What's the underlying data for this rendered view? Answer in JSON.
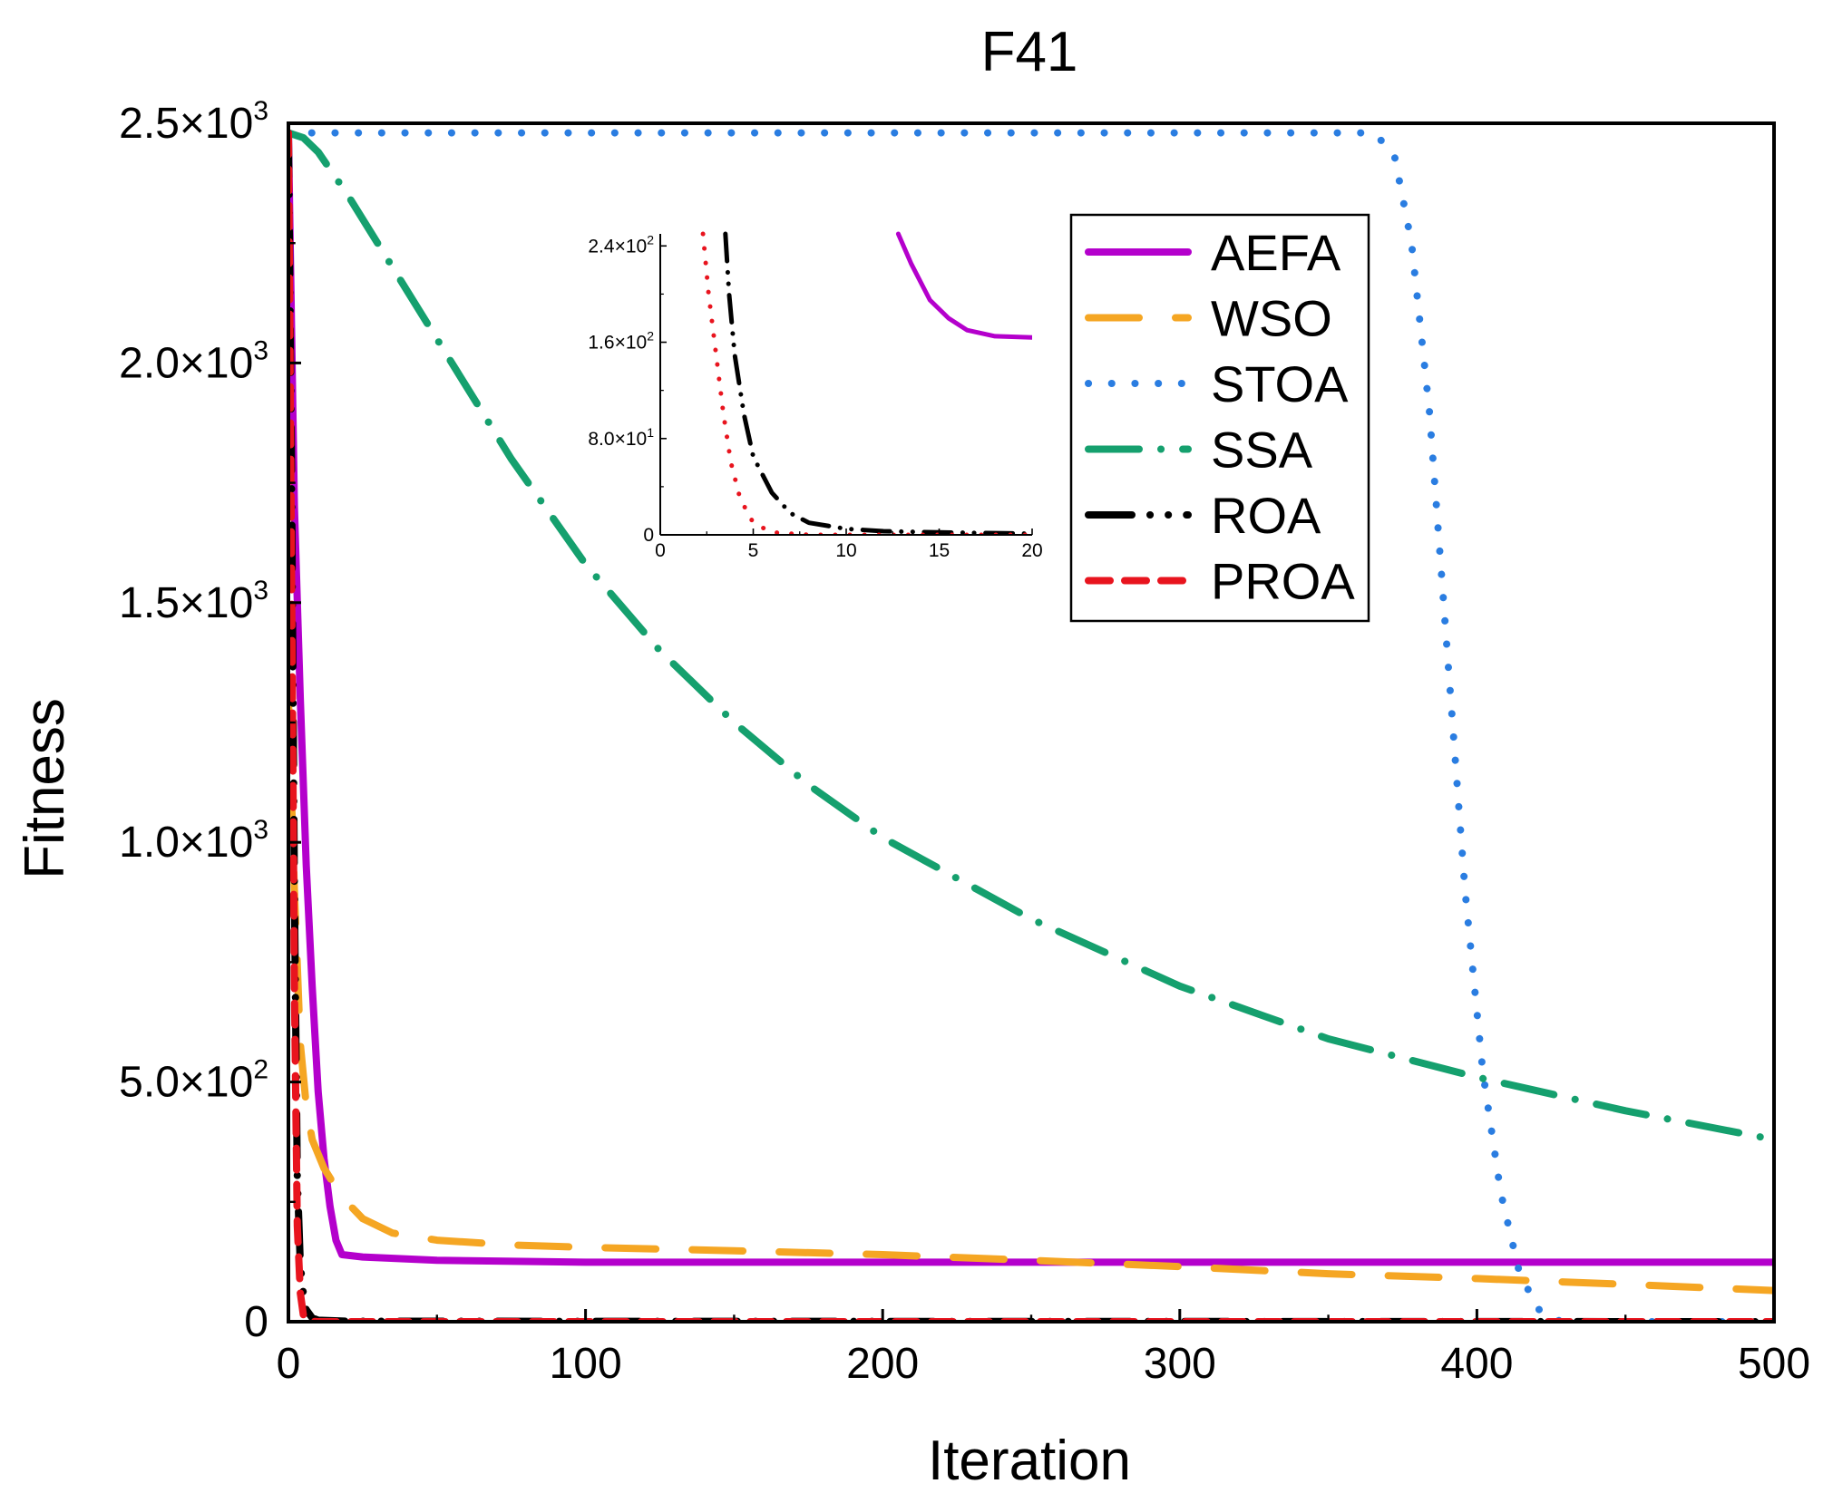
{
  "chart_data": {
    "type": "line",
    "title": "F41",
    "xlabel": "Iteration",
    "ylabel": "Fitness",
    "xlim": [
      0,
      500
    ],
    "ylim": [
      0,
      2500
    ],
    "grid": false,
    "legend_position": "top-right",
    "x_ticks": [
      {
        "value": 0,
        "label": "0"
      },
      {
        "value": 100,
        "label": "100"
      },
      {
        "value": 200,
        "label": "200"
      },
      {
        "value": 300,
        "label": "300"
      },
      {
        "value": 400,
        "label": "400"
      },
      {
        "value": 500,
        "label": "500"
      }
    ],
    "y_ticks": [
      {
        "value": 0,
        "mant": "0",
        "exp": ""
      },
      {
        "value": 500,
        "mant": "5.0×10",
        "exp": "2"
      },
      {
        "value": 1000,
        "mant": "1.0×10",
        "exp": "3"
      },
      {
        "value": 1500,
        "mant": "1.5×10",
        "exp": "3"
      },
      {
        "value": 2000,
        "mant": "2.0×10",
        "exp": "3"
      },
      {
        "value": 2500,
        "mant": "2.5×10",
        "exp": "3"
      }
    ],
    "series": [
      {
        "name": "AEFA",
        "color": "#b400cc",
        "style": "solid",
        "x": [
          0,
          2,
          4,
          6,
          8,
          10,
          12,
          14,
          16,
          18,
          25,
          50,
          100,
          200,
          300,
          400,
          500
        ],
        "y": [
          2480,
          1700,
          1300,
          950,
          700,
          480,
          340,
          240,
          170,
          140,
          135,
          128,
          124,
          124,
          124,
          124,
          124
        ]
      },
      {
        "name": "WSO",
        "color": "#f5a623",
        "style": "dashed",
        "x": [
          0,
          2,
          4,
          6,
          8,
          12,
          18,
          25,
          35,
          50,
          75,
          100,
          150,
          200,
          250,
          300,
          350,
          400,
          450,
          500
        ],
        "y": [
          1300,
          900,
          580,
          450,
          380,
          320,
          260,
          215,
          185,
          170,
          160,
          155,
          148,
          140,
          128,
          115,
          100,
          90,
          78,
          65
        ]
      },
      {
        "name": "STOA",
        "color": "#2a7de1",
        "style": "dotted",
        "x": [
          0,
          300,
          365,
          372,
          378,
          384,
          390,
          396,
          402,
          408,
          414,
          420,
          425,
          430,
          440,
          500
        ],
        "y": [
          2480,
          2480,
          2480,
          2440,
          2250,
          1900,
          1400,
          900,
          520,
          270,
          110,
          30,
          5,
          0,
          0,
          0
        ]
      },
      {
        "name": "SSA",
        "color": "#15a06e",
        "style": "dashdot",
        "x": [
          0,
          5,
          10,
          20,
          30,
          50,
          75,
          100,
          125,
          150,
          175,
          200,
          250,
          300,
          350,
          400,
          450,
          500
        ],
        "y": [
          2480,
          2470,
          2440,
          2350,
          2250,
          2050,
          1800,
          1580,
          1400,
          1250,
          1120,
          1010,
          840,
          700,
          590,
          510,
          440,
          380
        ]
      },
      {
        "name": "ROA",
        "color": "#000000",
        "style": "dashdotdot",
        "x": [
          0,
          1,
          2,
          3,
          4,
          5,
          6,
          8,
          10,
          20,
          500
        ],
        "y": [
          2480,
          1800,
          900,
          300,
          120,
          60,
          25,
          8,
          3,
          1,
          0
        ]
      },
      {
        "name": "PROA",
        "color": "#e8141e",
        "style": "shortdash",
        "x": [
          0,
          1,
          2,
          3,
          4,
          5,
          6,
          8,
          10,
          500
        ],
        "y": [
          2480,
          1600,
          700,
          200,
          60,
          15,
          4,
          1,
          0,
          0
        ]
      }
    ],
    "inset": {
      "xlim": [
        0,
        20
      ],
      "ylim": [
        0,
        250
      ],
      "x_ticks": [
        {
          "value": 0,
          "label": "0"
        },
        {
          "value": 5,
          "label": "5"
        },
        {
          "value": 10,
          "label": "10"
        },
        {
          "value": 15,
          "label": "15"
        },
        {
          "value": 20,
          "label": "20"
        }
      ],
      "y_ticks": [
        {
          "value": 0,
          "mant": "0",
          "exp": ""
        },
        {
          "value": 80,
          "mant": "8.0×10",
          "exp": "1"
        },
        {
          "value": 160,
          "mant": "1.6×10",
          "exp": "2"
        },
        {
          "value": 240,
          "mant": "2.4×10",
          "exp": "2"
        }
      ],
      "series": [
        {
          "name": "AEFA",
          "color": "#b400cc",
          "style": "solid",
          "x": [
            12.8,
            13.5,
            14.5,
            15.5,
            16.5,
            18,
            20
          ],
          "y": [
            250,
            225,
            195,
            180,
            170,
            165,
            164
          ]
        },
        {
          "name": "ROA",
          "color": "#000000",
          "style": "dashdotdot",
          "x": [
            3.5,
            3.7,
            4,
            4.5,
            5,
            6,
            7,
            8,
            10,
            12,
            15,
            20
          ],
          "y": [
            250,
            200,
            150,
            100,
            65,
            35,
            18,
            10,
            5,
            3,
            2,
            1
          ]
        },
        {
          "name": "PROA",
          "color": "#e8141e",
          "style": "dotted",
          "x": [
            2.3,
            2.6,
            3,
            3.4,
            3.8,
            4.3,
            5,
            6,
            8,
            20
          ],
          "y": [
            250,
            200,
            150,
            100,
            60,
            30,
            10,
            2,
            0,
            0
          ]
        }
      ]
    }
  }
}
